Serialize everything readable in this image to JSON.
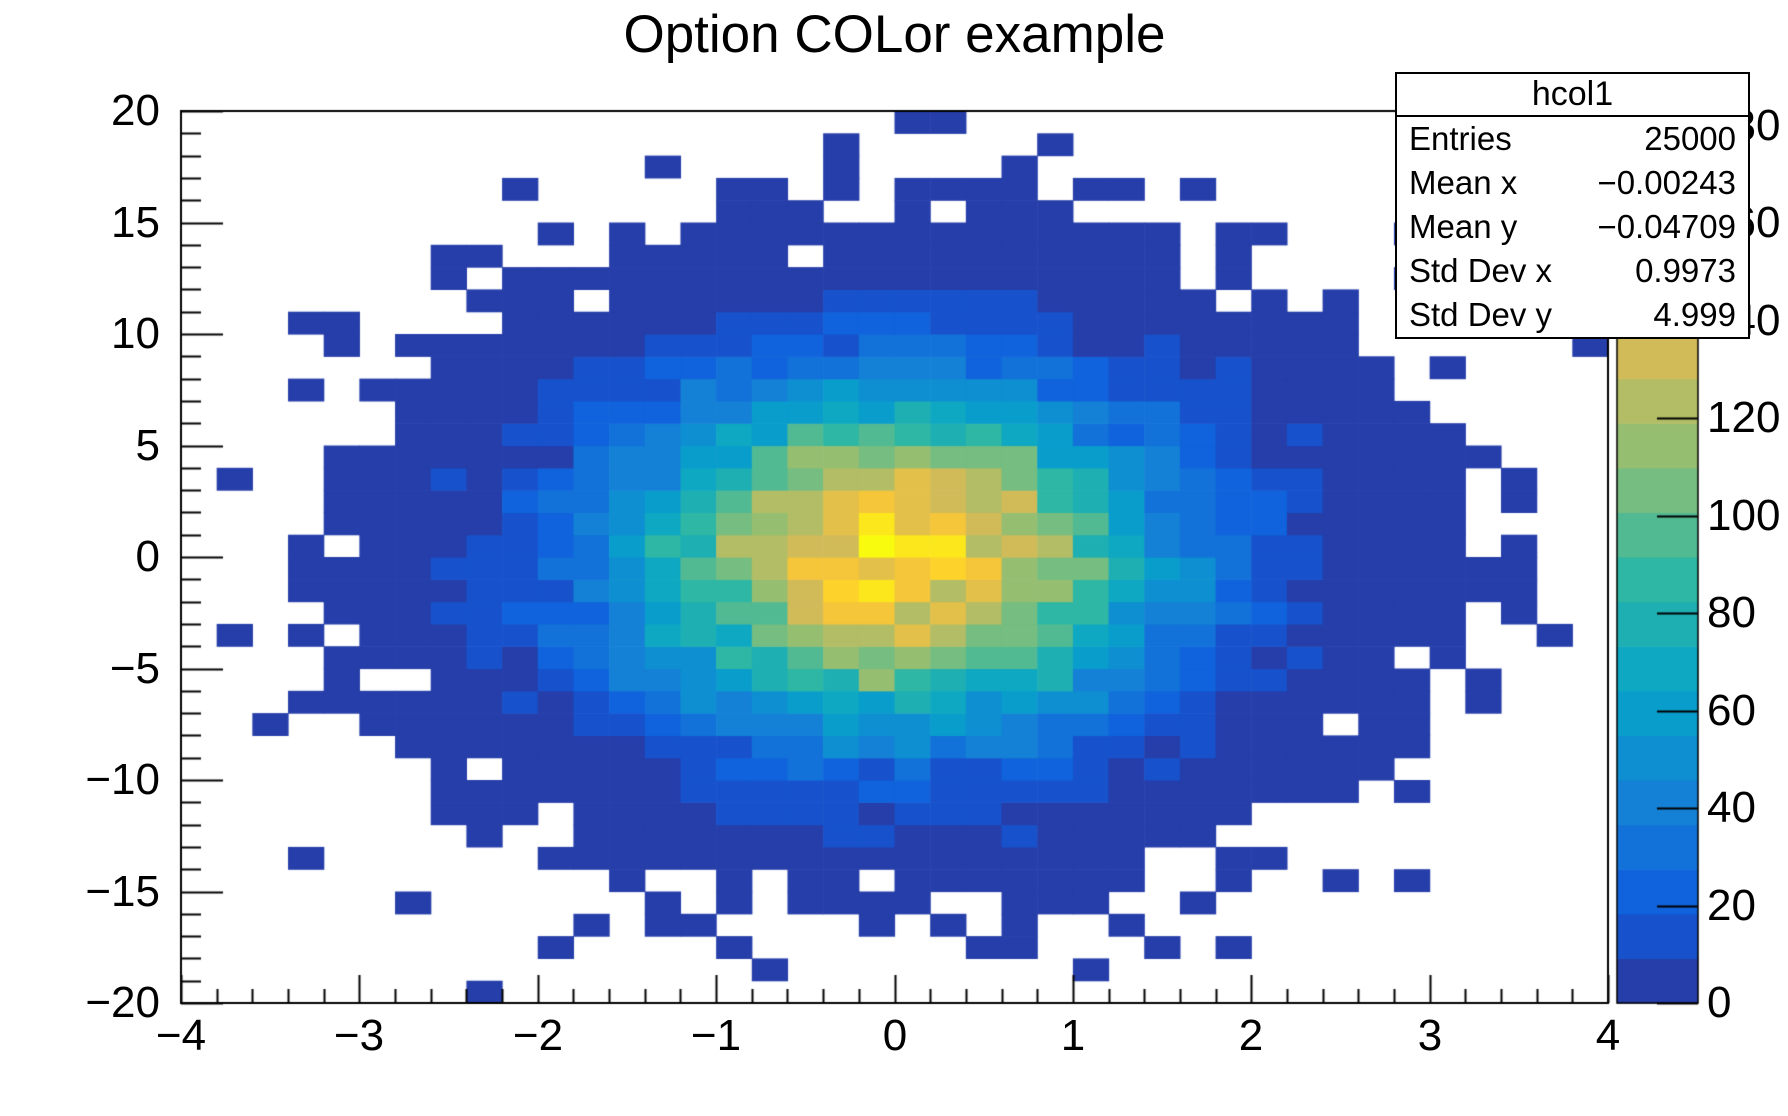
{
  "title": "Option COLor example",
  "stats": {
    "header": "hcol1",
    "rows": [
      {
        "label": "Entries",
        "value": "25000"
      },
      {
        "label": "Mean x",
        "value": "−0.00243"
      },
      {
        "label": "Mean y",
        "value": "−0.04709"
      },
      {
        "label": "Std Dev x",
        "value": "0.9973"
      },
      {
        "label": "Std Dev y",
        "value": "4.999"
      }
    ]
  },
  "chart_data": {
    "type": "heatmap",
    "title": "Option COLor example",
    "hist_name": "hcol1",
    "entries": 25000,
    "mean_x": -0.00243,
    "mean_y": -0.04709,
    "std_dev_x": 0.9973,
    "std_dev_y": 4.999,
    "xlabel": "",
    "ylabel": "",
    "xlim": [
      -4,
      4
    ],
    "ylim": [
      -20,
      20
    ],
    "zlim": [
      0,
      183
    ],
    "nbins_x": 40,
    "nbins_y": 40,
    "x_major_ticks": [
      -4,
      -3,
      -2,
      -1,
      0,
      1,
      2,
      3,
      4
    ],
    "x_minor_per_major": 5,
    "y_major_ticks": [
      -20,
      -15,
      -10,
      -5,
      0,
      5,
      10,
      15,
      20
    ],
    "y_minor_per_major": 5,
    "z_ticks": [
      0,
      20,
      40,
      60,
      80,
      100,
      120,
      140,
      160,
      180
    ],
    "n_contours": 20,
    "grid": false,
    "legend_position": "right-palette-bar",
    "distribution": {
      "model": "gaussian2d-poisson",
      "amplitude": 159.2,
      "center_x": 0,
      "center_y": 0,
      "sigma_x": 1.0,
      "sigma_y": 5.0,
      "seed": 12345
    },
    "palette_name": "bird",
    "palette_stops": [
      "#352a87",
      "#0f5cdd",
      "#1481d6",
      "#06a4ca",
      "#2eb7a4",
      "#87bf77",
      "#d1bb59",
      "#fec832",
      "#f9fb0e"
    ],
    "frame_color": "#000000",
    "background_color": "#ffffff"
  }
}
